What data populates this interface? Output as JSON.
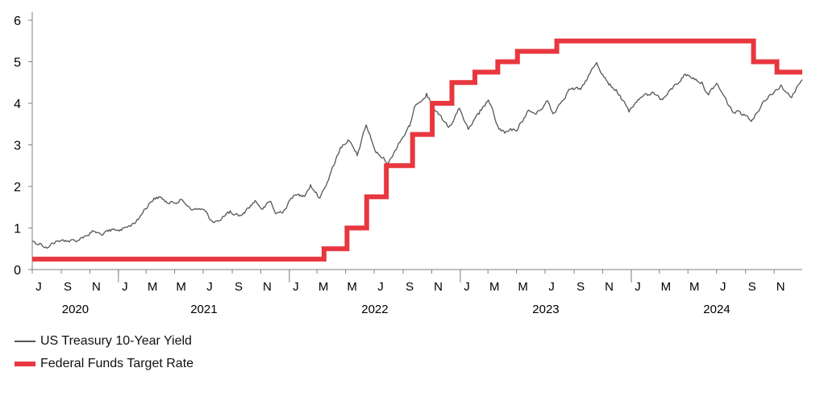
{
  "chart_data": {
    "type": "line",
    "title": "",
    "xlabel": "",
    "ylabel": "",
    "ylim": [
      0,
      6
    ],
    "yticks": [
      "0",
      "1",
      "2",
      "3",
      "4",
      "5",
      "6"
    ],
    "xlim": [
      "2020-07-01",
      "2024-12-31"
    ],
    "month_ticks": [
      "J",
      "S",
      "N",
      "J",
      "M",
      "M",
      "J",
      "S",
      "N",
      "J",
      "M",
      "M",
      "J",
      "S",
      "N",
      "J",
      "M",
      "M",
      "J",
      "S",
      "N",
      "J",
      "M",
      "M",
      "J",
      "S",
      "N"
    ],
    "years": [
      "2020",
      "2021",
      "2022",
      "2023",
      "2024"
    ],
    "grid": false,
    "legend_position": "bottom-left",
    "series": [
      {
        "name": "US Treasury 10-Year Yield",
        "color": "#555555",
        "style": "thin",
        "points": [
          [
            "2020-07-01",
            0.68
          ],
          [
            "2020-07-20",
            0.62
          ],
          [
            "2020-08-04",
            0.53
          ],
          [
            "2020-08-20",
            0.68
          ],
          [
            "2020-09-10",
            0.7
          ],
          [
            "2020-10-01",
            0.68
          ],
          [
            "2020-10-20",
            0.8
          ],
          [
            "2020-11-09",
            0.92
          ],
          [
            "2020-11-25",
            0.84
          ],
          [
            "2020-12-15",
            0.92
          ],
          [
            "2021-01-05",
            0.96
          ],
          [
            "2021-01-25",
            1.05
          ],
          [
            "2021-02-12",
            1.2
          ],
          [
            "2021-02-25",
            1.45
          ],
          [
            "2021-03-18",
            1.72
          ],
          [
            "2021-03-31",
            1.74
          ],
          [
            "2021-04-20",
            1.58
          ],
          [
            "2021-05-12",
            1.68
          ],
          [
            "2021-06-10",
            1.45
          ],
          [
            "2021-06-30",
            1.45
          ],
          [
            "2021-07-19",
            1.18
          ],
          [
            "2021-08-04",
            1.17
          ],
          [
            "2021-08-25",
            1.35
          ],
          [
            "2021-09-20",
            1.3
          ],
          [
            "2021-10-20",
            1.66
          ],
          [
            "2021-11-05",
            1.45
          ],
          [
            "2021-11-22",
            1.64
          ],
          [
            "2021-12-03",
            1.34
          ],
          [
            "2021-12-20",
            1.42
          ],
          [
            "2022-01-10",
            1.78
          ],
          [
            "2022-01-31",
            1.78
          ],
          [
            "2022-02-15",
            2.04
          ],
          [
            "2022-03-07",
            1.72
          ],
          [
            "2022-03-31",
            2.35
          ],
          [
            "2022-04-20",
            2.94
          ],
          [
            "2022-05-06",
            3.12
          ],
          [
            "2022-05-26",
            2.74
          ],
          [
            "2022-06-14",
            3.48
          ],
          [
            "2022-07-05",
            2.81
          ],
          [
            "2022-08-01",
            2.57
          ],
          [
            "2022-08-22",
            3.04
          ],
          [
            "2022-09-15",
            3.45
          ],
          [
            "2022-09-27",
            3.95
          ],
          [
            "2022-10-21",
            4.24
          ],
          [
            "2022-11-10",
            3.81
          ],
          [
            "2022-12-07",
            3.42
          ],
          [
            "2022-12-30",
            3.88
          ],
          [
            "2023-01-18",
            3.37
          ],
          [
            "2023-02-10",
            3.74
          ],
          [
            "2023-03-02",
            4.08
          ],
          [
            "2023-03-24",
            3.38
          ],
          [
            "2023-04-06",
            3.28
          ],
          [
            "2023-05-04",
            3.38
          ],
          [
            "2023-05-25",
            3.82
          ],
          [
            "2023-06-12",
            3.74
          ],
          [
            "2023-07-06",
            4.06
          ],
          [
            "2023-07-18",
            3.75
          ],
          [
            "2023-08-21",
            4.34
          ],
          [
            "2023-09-15",
            4.33
          ],
          [
            "2023-10-05",
            4.72
          ],
          [
            "2023-10-19",
            4.98
          ],
          [
            "2023-11-14",
            4.44
          ],
          [
            "2023-11-30",
            4.33
          ],
          [
            "2023-12-27",
            3.79
          ],
          [
            "2024-01-10",
            4.02
          ],
          [
            "2024-02-15",
            4.27
          ],
          [
            "2024-03-08",
            4.09
          ],
          [
            "2024-04-25",
            4.7
          ],
          [
            "2024-05-31",
            4.51
          ],
          [
            "2024-06-14",
            4.2
          ],
          [
            "2024-07-01",
            4.48
          ],
          [
            "2024-08-05",
            3.78
          ],
          [
            "2024-08-20",
            3.8
          ],
          [
            "2024-09-16",
            3.62
          ],
          [
            "2024-10-10",
            4.06
          ],
          [
            "2024-11-15",
            4.44
          ],
          [
            "2024-12-06",
            4.15
          ],
          [
            "2024-12-31",
            4.57
          ]
        ]
      },
      {
        "name": "Federal Funds Target Rate",
        "color": "#e8373f",
        "style": "thick-step",
        "points": [
          [
            "2020-07-01",
            0.25
          ],
          [
            "2022-03-16",
            0.5
          ],
          [
            "2022-05-04",
            1.0
          ],
          [
            "2022-06-15",
            1.75
          ],
          [
            "2022-07-27",
            2.5
          ],
          [
            "2022-09-21",
            3.25
          ],
          [
            "2022-11-02",
            4.0
          ],
          [
            "2022-12-14",
            4.5
          ],
          [
            "2023-02-01",
            4.75
          ],
          [
            "2023-03-22",
            5.0
          ],
          [
            "2023-05-03",
            5.25
          ],
          [
            "2023-07-26",
            5.5
          ],
          [
            "2024-09-18",
            5.0
          ],
          [
            "2024-11-07",
            4.75
          ],
          [
            "2024-12-31",
            4.75
          ]
        ]
      }
    ]
  }
}
